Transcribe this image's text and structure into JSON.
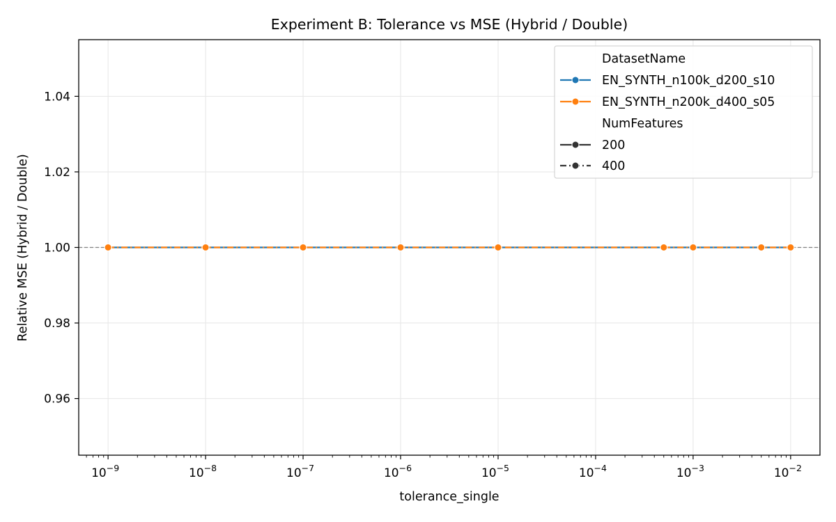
{
  "chart_data": {
    "type": "line",
    "title": "Experiment B: Tolerance vs MSE (Hybrid / Double)",
    "xlabel": "tolerance_single",
    "ylabel": "Relative MSE (Hybrid / Double)",
    "xscale": "log",
    "xlim": [
      5e-10,
      0.02
    ],
    "ylim": [
      0.945,
      1.055
    ],
    "x_ticks": [
      {
        "value": 1e-09,
        "base": "10",
        "exp": "−9"
      },
      {
        "value": 1e-08,
        "base": "10",
        "exp": "−8"
      },
      {
        "value": 1e-07,
        "base": "10",
        "exp": "−7"
      },
      {
        "value": 1e-06,
        "base": "10",
        "exp": "−6"
      },
      {
        "value": 1e-05,
        "base": "10",
        "exp": "−5"
      },
      {
        "value": 0.0001,
        "base": "10",
        "exp": "−4"
      },
      {
        "value": 0.001,
        "base": "10",
        "exp": "−3"
      },
      {
        "value": 0.01,
        "base": "10",
        "exp": "−2"
      }
    ],
    "y_ticks": [
      {
        "value": 0.96,
        "label": "0.96"
      },
      {
        "value": 0.98,
        "label": "0.98"
      },
      {
        "value": 1.0,
        "label": "1.00"
      },
      {
        "value": 1.02,
        "label": "1.02"
      },
      {
        "value": 1.04,
        "label": "1.04"
      }
    ],
    "grid": true,
    "reference_line": {
      "y": 1.0,
      "color": "#808080",
      "style": "dashed"
    },
    "series": [
      {
        "name": "EN_SYNTH_n100k_d200_s10",
        "color": "#1f77b4",
        "num_features": "200",
        "x": [
          1e-09,
          1e-08,
          1e-07,
          1e-06,
          1e-05,
          0.0005,
          0.001,
          0.005,
          0.01
        ],
        "y": [
          1.0,
          1.0,
          1.0,
          1.0,
          1.0,
          1.0,
          1.0,
          1.0,
          1.0
        ]
      },
      {
        "name": "EN_SYNTH_n200k_d400_s05",
        "color": "#ff7f0e",
        "num_features": "400",
        "x": [
          1e-09,
          1e-08,
          1e-07,
          1e-06,
          1e-05,
          0.0005,
          0.001,
          0.005,
          0.01
        ],
        "y": [
          1.0,
          1.0,
          1.0,
          1.0,
          1.0,
          1.0,
          1.0,
          1.0,
          1.0
        ]
      }
    ],
    "legend": {
      "placement": "top-right",
      "hue_title": "DatasetName",
      "style_title": "NumFeatures",
      "hue_entries": [
        {
          "label": "EN_SYNTH_n100k_d200_s10",
          "color": "#1f77b4"
        },
        {
          "label": "EN_SYNTH_n200k_d400_s05",
          "color": "#ff7f0e"
        }
      ],
      "style_entries": [
        {
          "label": "200",
          "dash": "solid"
        },
        {
          "label": "400",
          "dash": "dashdot"
        }
      ]
    }
  }
}
